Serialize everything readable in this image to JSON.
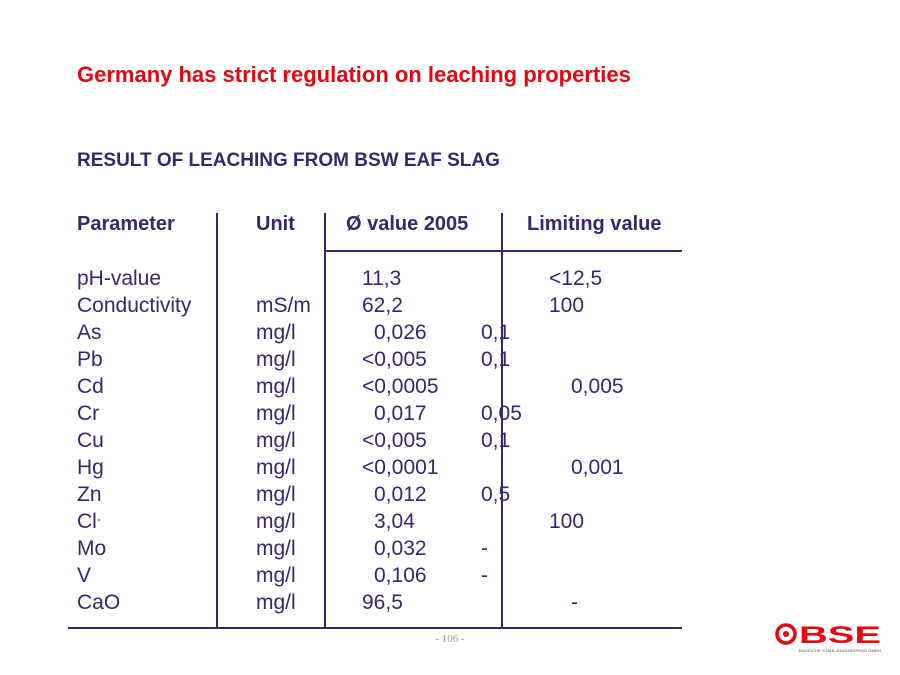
{
  "title": "Germany has strict regulation on leaching properties",
  "subtitle": "RESULT OF LEACHING FROM BSW EAF SLAG",
  "table": {
    "headers": [
      "Parameter",
      "Unit",
      "Ø value 2005",
      "Limiting value"
    ],
    "rows": [
      {
        "param": "pH-value",
        "unit": "",
        "value": "11,3",
        "limit_inline": "",
        "limit": "<12,5"
      },
      {
        "param": "Conductivity",
        "unit": "mS/m",
        "value": "62,2",
        "limit_inline": "",
        "limit": "100"
      },
      {
        "param": "As",
        "unit": "mg/l",
        "value": "0,026",
        "limit_inline": "0,1",
        "limit": ""
      },
      {
        "param": "Pb",
        "unit": "mg/l",
        "value": "<0,005",
        "limit_inline": "0,1",
        "limit": ""
      },
      {
        "param": "Cd",
        "unit": "mg/l",
        "value": "<0,0005",
        "limit_inline": "",
        "limit": "0,005"
      },
      {
        "param": "Cr",
        "unit": "mg/l",
        "value": "0,017",
        "limit_inline": "0,05",
        "limit": ""
      },
      {
        "param": "Cu",
        "unit": "mg/l",
        "value": "<0,005",
        "limit_inline": "0,1",
        "limit": ""
      },
      {
        "param": "Hg",
        "unit": "mg/l",
        "value": "<0,0001",
        "limit_inline": "",
        "limit": "0,001"
      },
      {
        "param": "Zn",
        "unit": "mg/l",
        "value": "0,012",
        "limit_inline": "0,5",
        "limit": ""
      },
      {
        "param": "Cl",
        "param_sup": "-",
        "unit": "mg/l",
        "value": "3,04",
        "limit_inline": "",
        "limit": "100"
      },
      {
        "param": "Mo",
        "unit": "mg/l",
        "value": "0,032",
        "limit_inline": "-",
        "limit": ""
      },
      {
        "param": "V",
        "unit": "mg/l",
        "value": "0,106",
        "limit_inline": "-",
        "limit": ""
      },
      {
        "param": "CaO",
        "unit": "mg/l",
        "value": "96,5",
        "limit_inline": "",
        "limit": "-"
      }
    ]
  },
  "page_number": "- 106 -",
  "logo": {
    "text": "BSE",
    "subtext": "BADISCHE STAHL-ENGINEERING GMBH",
    "color": "#e30613"
  },
  "colors": {
    "title": "#e30613",
    "text": "#3b2569"
  }
}
